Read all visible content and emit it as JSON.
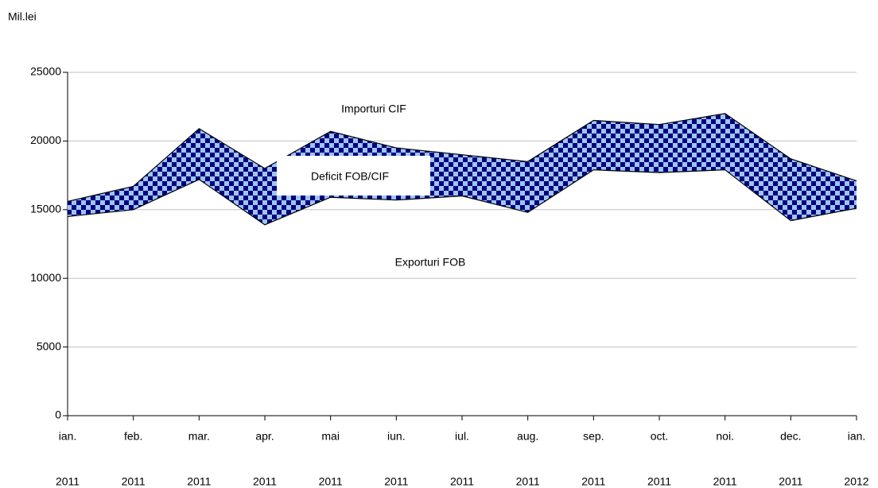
{
  "chart_data": {
    "type": "band",
    "y_label": "Mil.lei",
    "categories": [
      [
        "ian.",
        "2011"
      ],
      [
        "feb.",
        "2011"
      ],
      [
        "mar.",
        "2011"
      ],
      [
        "apr.",
        "2011"
      ],
      [
        "mai",
        "2011"
      ],
      [
        "iun.",
        "2011"
      ],
      [
        "iul.",
        "2011"
      ],
      [
        "aug.",
        "2011"
      ],
      [
        "sep.",
        "2011"
      ],
      [
        "oct.",
        "2011"
      ],
      [
        "noi.",
        "2011"
      ],
      [
        "dec.",
        "2011"
      ],
      [
        "ian.",
        "2012"
      ]
    ],
    "series": [
      {
        "name": "Importuri CIF",
        "color": "#000000",
        "values": [
          15600,
          16700,
          20900,
          18000,
          20700,
          19500,
          19000,
          18500,
          21500,
          21200,
          22000,
          18700,
          17100
        ]
      },
      {
        "name": "Exporturi FOB",
        "color": "#000000",
        "values": [
          14500,
          15000,
          17200,
          13900,
          15900,
          15700,
          16000,
          14800,
          17900,
          17700,
          17900,
          14200,
          15100
        ]
      }
    ],
    "fill_label": "Deficit FOB/CIF",
    "fill_colors": [
      "#000080",
      "#9ec5f0"
    ],
    "ylim": [
      0,
      25000
    ],
    "yticks": [
      0,
      5000,
      10000,
      15000,
      20000,
      25000
    ],
    "grid": true
  }
}
